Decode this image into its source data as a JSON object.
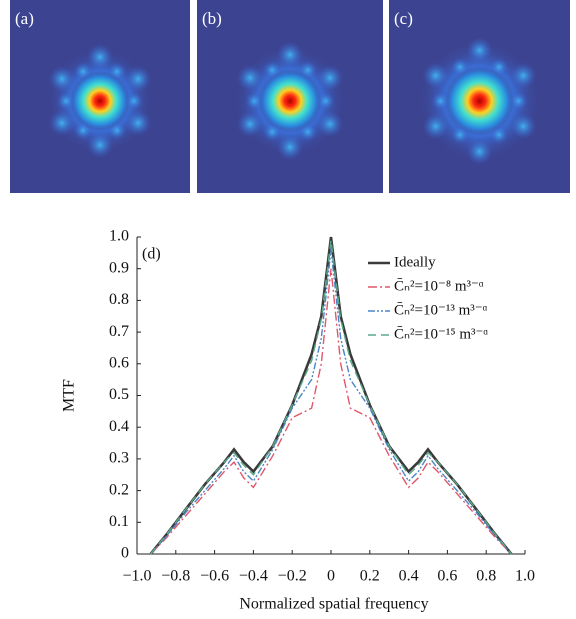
{
  "panels": [
    {
      "label": "(a)"
    },
    {
      "label": "(b)"
    },
    {
      "label": "(c)"
    }
  ],
  "chart_data": {
    "type": "line",
    "annotation": "(d)",
    "xlabel": "Normalized spatial frequency",
    "ylabel": "MTF",
    "x": [
      -0.93,
      -0.85,
      -0.75,
      -0.65,
      -0.55,
      -0.5,
      -0.45,
      -0.4,
      -0.3,
      -0.2,
      -0.1,
      -0.05,
      0,
      0.05,
      0.1,
      0.2,
      0.3,
      0.4,
      0.45,
      0.5,
      0.55,
      0.65,
      0.75,
      0.85,
      0.93
    ],
    "series": [
      {
        "name": "Ideally",
        "color": "#3a3a3a",
        "style": "solid",
        "values": [
          0,
          0.06,
          0.14,
          0.22,
          0.29,
          0.33,
          0.29,
          0.26,
          0.34,
          0.47,
          0.63,
          0.75,
          1.0,
          0.75,
          0.63,
          0.47,
          0.34,
          0.26,
          0.29,
          0.33,
          0.29,
          0.22,
          0.14,
          0.06,
          0
        ]
      },
      {
        "name": "C̄ₙ²=10⁻⁸ m³⁻ᵅ",
        "color": "#e0566a",
        "style": "dashdot",
        "values": [
          0,
          0.05,
          0.12,
          0.19,
          0.26,
          0.29,
          0.24,
          0.21,
          0.31,
          0.43,
          0.46,
          0.6,
          0.9,
          0.6,
          0.46,
          0.43,
          0.31,
          0.21,
          0.24,
          0.29,
          0.26,
          0.19,
          0.12,
          0.05,
          0
        ]
      },
      {
        "name": "C̄ₙ²=10⁻¹³ m³⁻ᵅ",
        "color": "#4a86c8",
        "style": "dashdotdot",
        "values": [
          0,
          0.055,
          0.13,
          0.2,
          0.27,
          0.31,
          0.26,
          0.23,
          0.33,
          0.46,
          0.55,
          0.68,
          0.96,
          0.68,
          0.55,
          0.46,
          0.33,
          0.23,
          0.26,
          0.31,
          0.27,
          0.2,
          0.13,
          0.055,
          0
        ]
      },
      {
        "name": "C̄ₙ²=10⁻¹⁵ m³⁻ᵅ",
        "color": "#5aaa8a",
        "style": "dashed",
        "values": [
          0,
          0.06,
          0.14,
          0.22,
          0.29,
          0.32,
          0.28,
          0.25,
          0.34,
          0.47,
          0.61,
          0.74,
          0.99,
          0.74,
          0.61,
          0.47,
          0.34,
          0.25,
          0.28,
          0.32,
          0.29,
          0.22,
          0.14,
          0.06,
          0
        ]
      }
    ],
    "xlim": [
      -1,
      1
    ],
    "xticks": [
      {
        "value": -1,
        "label": "−1.0"
      },
      {
        "value": -0.8,
        "label": "−0.8"
      },
      {
        "value": -0.6,
        "label": "−0.6"
      },
      {
        "value": -0.4,
        "label": "−0.4"
      },
      {
        "value": -0.2,
        "label": "−0.2"
      },
      0,
      0.2,
      0.4,
      0.6,
      0.8,
      {
        "value": 1,
        "label": "1.0"
      }
    ],
    "ylim": [
      0,
      1
    ],
    "yticks": [
      0,
      0.1,
      0.2,
      0.3,
      0.4,
      0.5,
      0.6,
      0.7,
      0.8,
      0.9,
      {
        "value": 1,
        "label": "1.0"
      }
    ],
    "legend": "upper right",
    "grid": false
  }
}
